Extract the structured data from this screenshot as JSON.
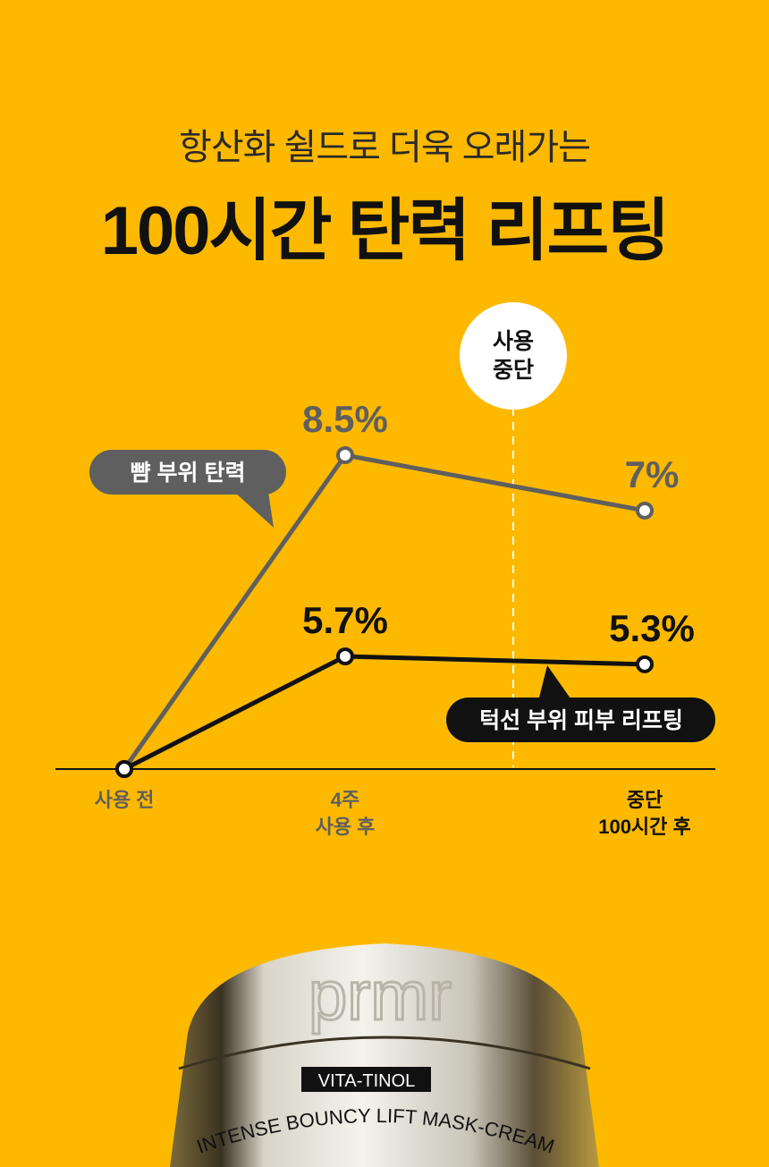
{
  "header": {
    "subtitle": "항산화 쉴드로 더욱 오래가는",
    "title": "100시간 탄력 리프팅"
  },
  "chart_data": {
    "type": "line",
    "categories": [
      "사용 전",
      "4주\n사용 후",
      "중단\n100시간 후"
    ],
    "category_lines": [
      [
        "사용 전"
      ],
      [
        "4주",
        "사용 후"
      ],
      [
        "중단",
        "100시간 후"
      ]
    ],
    "stop_marker": {
      "label_lines": [
        "사용",
        "중단"
      ],
      "between": [
        "4주 사용 후",
        "중단 100시간 후"
      ]
    },
    "series": [
      {
        "name": "뺨 부위 탄력",
        "values": [
          0,
          8.5,
          7
        ],
        "labels": [
          "",
          "8.5%",
          "7%"
        ],
        "color": "#5f5f5f"
      },
      {
        "name": "턱선 부위 피부 리프팅",
        "values": [
          0,
          5.7,
          5.3
        ],
        "labels": [
          "",
          "5.7%",
          "5.3%"
        ],
        "color": "#111111"
      }
    ],
    "unit": "%"
  },
  "product": {
    "brand": "prmr",
    "badge": "VITA-TINOL",
    "name": "INTENSE BOUNCY LIFT MASK-CREAM"
  },
  "colors": {
    "background": "#FCB900",
    "gray": "#5f5f5f",
    "black": "#111111"
  }
}
